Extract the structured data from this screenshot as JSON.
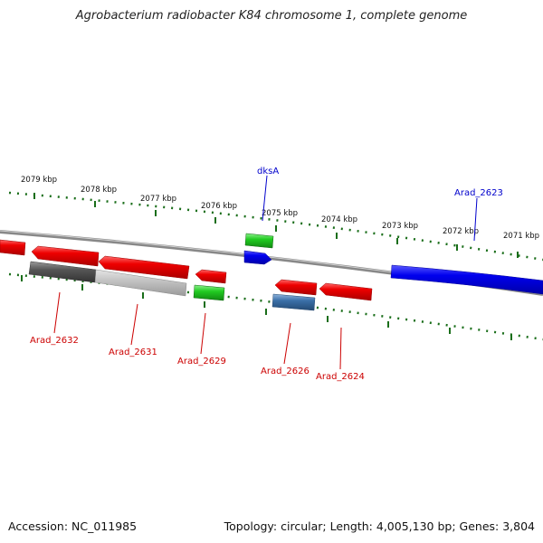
{
  "title": "Agrobacterium radiobacter K84 chromosome 1, complete genome",
  "footer": {
    "accession": "Accession: NC_011985",
    "summary": "Topology: circular; Length: 4,005,130 bp; Genes: 3,804"
  },
  "colors": {
    "forward_gene": "#0000ee",
    "reverse_gene": "#ee0000",
    "rna_gene": "#22bb22",
    "pseudo_gene": "#555555",
    "other_gene": "#3a6fa8",
    "backbone": "#888888",
    "tick": "#1a6e1a"
  },
  "ticks": [
    {
      "label": "2079 kbp"
    },
    {
      "label": "2078 kbp"
    },
    {
      "label": "2077 kbp"
    },
    {
      "label": "2076 kbp"
    },
    {
      "label": "2075 kbp"
    },
    {
      "label": "2074 kbp"
    },
    {
      "label": "2073 kbp"
    },
    {
      "label": "2072 kbp"
    },
    {
      "label": "2071 kbp"
    }
  ],
  "gene_labels": [
    {
      "name": "dksA",
      "color": "#0000cc"
    },
    {
      "name": "Arad_2623",
      "color": "#0000cc"
    },
    {
      "name": "Arad_2632",
      "color": "#cc0000"
    },
    {
      "name": "Arad_2631",
      "color": "#cc0000"
    },
    {
      "name": "Arad_2629",
      "color": "#cc0000"
    },
    {
      "name": "Arad_2626",
      "color": "#cc0000"
    },
    {
      "name": "Arad_2624",
      "color": "#cc0000"
    }
  ]
}
